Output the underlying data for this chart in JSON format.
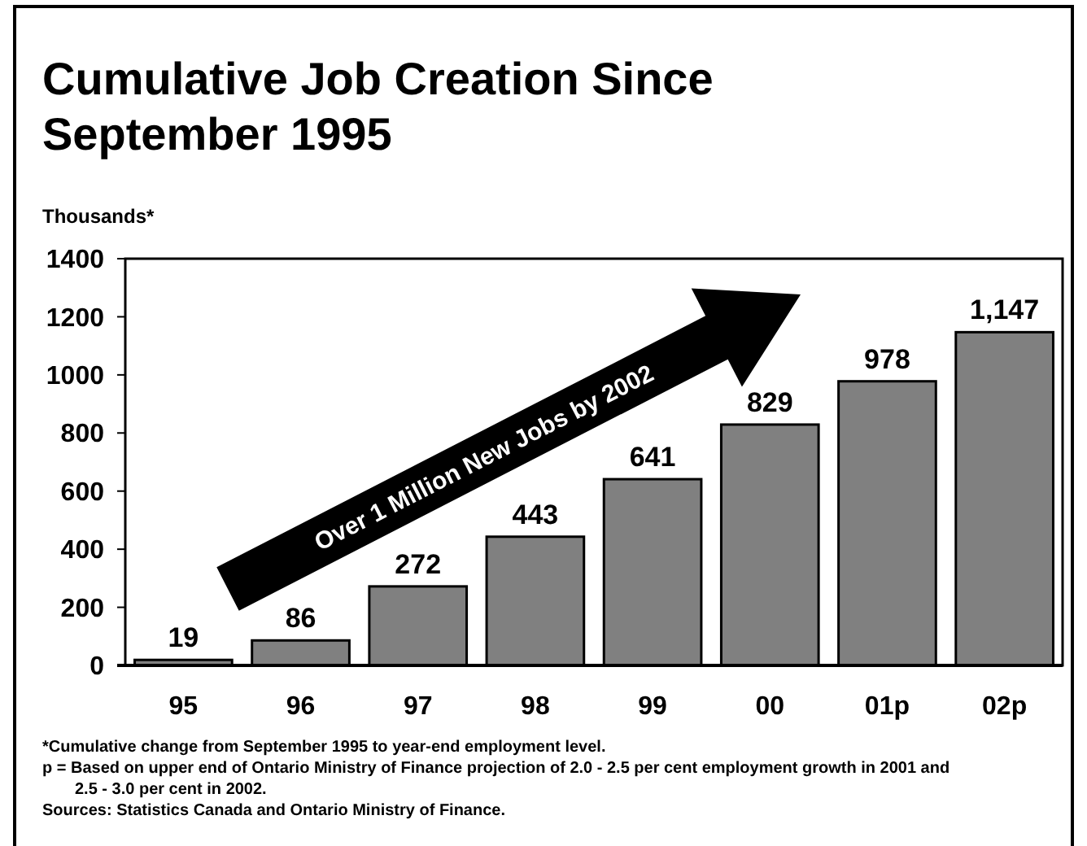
{
  "chart_data": {
    "type": "bar",
    "title": "Cumulative Job Creation Since September 1995",
    "ylabel": "Thousands*",
    "categories": [
      "95",
      "96",
      "97",
      "98",
      "99",
      "00",
      "01p",
      "02p"
    ],
    "values": [
      19,
      86,
      272,
      443,
      641,
      829,
      978,
      1147
    ],
    "value_labels": [
      "19",
      "86",
      "272",
      "443",
      "641",
      "829",
      "978",
      "1,147"
    ],
    "color": "#808080",
    "ylim": [
      0,
      1400
    ],
    "yticks": [
      0,
      200,
      400,
      600,
      800,
      1000,
      1200,
      1400
    ],
    "grid": false,
    "annotations": [
      "Over 1 Million New Jobs by 2002",
      "*Cumulative change from September 1995 to year-end employment level.",
      "p = Based on upper end of Ontario Ministry of Finance projection of 2.0 - 2.5 per cent employment growth in 2001 and 2.5 - 3.0 per cent in 2002.",
      "Sources:  Statistics Canada and Ontario Ministry of Finance."
    ]
  }
}
